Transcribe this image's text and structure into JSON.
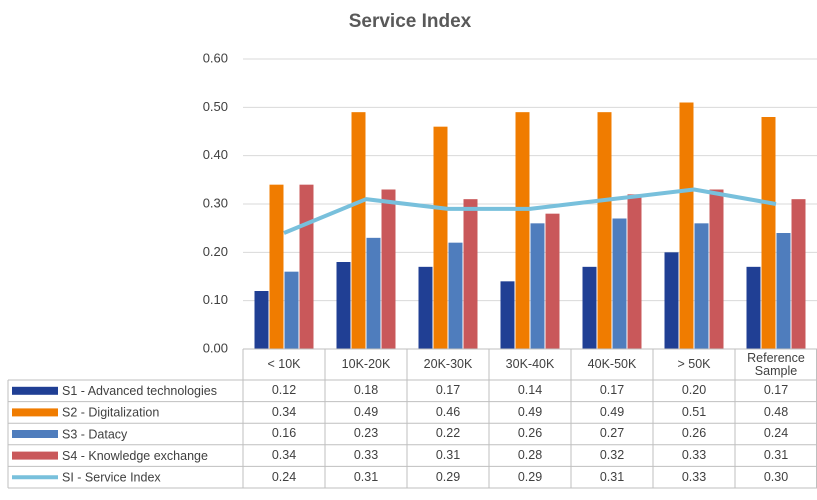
{
  "chart_data": {
    "type": "bar",
    "title": "Service Index",
    "categories": [
      "< 10K",
      "10K-20K",
      "20K-30K",
      "30K-40K",
      "40K-50K",
      "> 50K",
      "Reference Sample"
    ],
    "series": [
      {
        "name": "S1 - Advanced technologies",
        "color": "#203f94",
        "values": [
          0.12,
          0.18,
          0.17,
          0.14,
          0.17,
          0.2,
          0.17
        ],
        "value_labels": [
          "0.12",
          "0.18",
          "0.17",
          "0.14",
          "0.17",
          "0.20",
          "0.17"
        ]
      },
      {
        "name": "S2 - Digitalization",
        "color": "#f07c00",
        "values": [
          0.34,
          0.49,
          0.46,
          0.49,
          0.49,
          0.51,
          0.48
        ],
        "value_labels": [
          "0.34",
          "0.49",
          "0.46",
          "0.49",
          "0.49",
          "0.51",
          "0.48"
        ]
      },
      {
        "name": "S3 - Datacy",
        "color": "#4f7dbd",
        "values": [
          0.16,
          0.23,
          0.22,
          0.26,
          0.27,
          0.26,
          0.24
        ],
        "value_labels": [
          "0.16",
          "0.23",
          "0.22",
          "0.26",
          "0.27",
          "0.26",
          "0.24"
        ]
      },
      {
        "name": "S4 - Knowledge exchange",
        "color": "#c9585a",
        "values": [
          0.34,
          0.33,
          0.31,
          0.28,
          0.32,
          0.33,
          0.31
        ],
        "value_labels": [
          "0.34",
          "0.33",
          "0.31",
          "0.28",
          "0.32",
          "0.33",
          "0.31"
        ]
      },
      {
        "name": "SI - Service Index",
        "type": "line",
        "color": "#78c0dc",
        "values": [
          0.24,
          0.31,
          0.29,
          0.29,
          0.31,
          0.33,
          0.3
        ],
        "value_labels": [
          "0.24",
          "0.31",
          "0.29",
          "0.29",
          "0.31",
          "0.33",
          "0.30"
        ]
      }
    ],
    "ylim": [
      0,
      0.6
    ],
    "yticks": [
      {
        "value": 0,
        "label": "0.00"
      },
      {
        "value": 0.1,
        "label": "0.10"
      },
      {
        "value": 0.2,
        "label": "0.20"
      },
      {
        "value": 0.3,
        "label": "0.30"
      },
      {
        "value": 0.4,
        "label": "0.40"
      },
      {
        "value": 0.5,
        "label": "0.50"
      },
      {
        "value": 0.6,
        "label": "0.60"
      }
    ],
    "grid": true
  }
}
